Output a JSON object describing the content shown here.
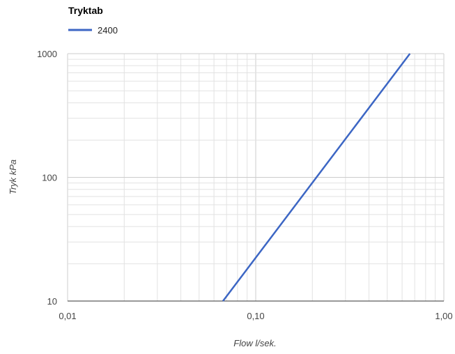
{
  "chart_data": {
    "type": "line",
    "title": "Tryktab",
    "xlabel": "Flow l/sek.",
    "ylabel": "Tryk kPa",
    "x_scale": "log",
    "y_scale": "log",
    "xlim": [
      0.01,
      1.0
    ],
    "ylim": [
      10,
      1000
    ],
    "x_ticks": [
      {
        "value": 0.01,
        "label": "0,01"
      },
      {
        "value": 0.1,
        "label": "0,10"
      },
      {
        "value": 1.0,
        "label": "1,00"
      }
    ],
    "y_ticks": [
      {
        "value": 10,
        "label": "10"
      },
      {
        "value": 100,
        "label": "100"
      },
      {
        "value": 1000,
        "label": "1000"
      }
    ],
    "grid": true,
    "legend_position": "top-left",
    "series": [
      {
        "name": "2400",
        "color": "#3c66c4",
        "points": [
          {
            "x": 0.067,
            "y": 10
          },
          {
            "x": 0.66,
            "y": 1000
          }
        ]
      }
    ]
  }
}
